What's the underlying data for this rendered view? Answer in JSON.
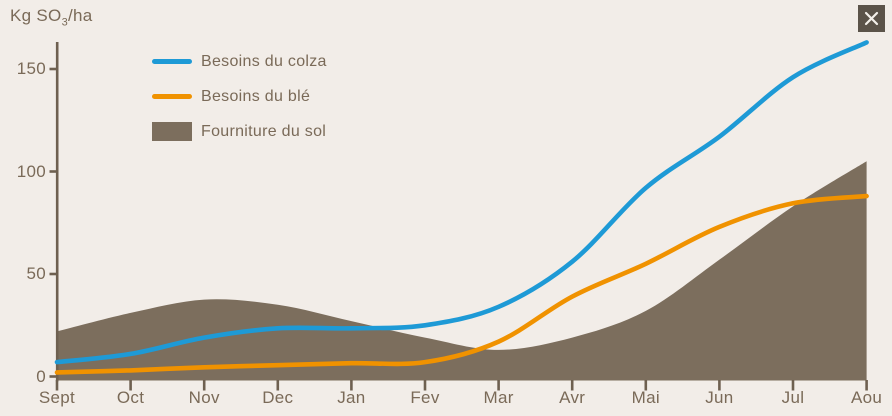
{
  "panel": {
    "background": "#f2ede8"
  },
  "axis": {
    "y_title_prefix": "Kg SO",
    "y_title_sub": "3",
    "y_title_suffix": "/ha"
  },
  "colors": {
    "text": "#7a6a58",
    "axis": "#6e6050",
    "close_background": "#5b5349",
    "close_x": "#f4f0ea",
    "colza_blue": "#1e9ad6",
    "ble_orange": "#f09200",
    "sol_brown": "#7c6e5d"
  },
  "chart_data": {
    "type": "area",
    "categories": [
      "Sept",
      "Oct",
      "Nov",
      "Dec",
      "Jan",
      "Fev",
      "Mar",
      "Avr",
      "Mai",
      "Jun",
      "Jul",
      "Aou"
    ],
    "series": [
      {
        "name": "Besoins du colza",
        "type": "line",
        "color": "#1e9ad6",
        "values": [
          7,
          11,
          19,
          23.5,
          23.5,
          25,
          34,
          56,
          92,
          117,
          146,
          163
        ]
      },
      {
        "name": "Besoins du blé",
        "type": "line",
        "color": "#f09200",
        "values": [
          2,
          3,
          4.5,
          5.5,
          6.5,
          7,
          17,
          39,
          55,
          73,
          84.5,
          88
        ]
      },
      {
        "name": "Fourniture du sol",
        "type": "area",
        "color": "#7c6e5d",
        "values": [
          22,
          31,
          37.5,
          35,
          27,
          19,
          13,
          19,
          32,
          57,
          83,
          105
        ]
      }
    ],
    "title": "",
    "xlabel": "",
    "ylabel": "Kg SO3/ha",
    "yticks": [
      0,
      50,
      100,
      150
    ],
    "ylim": [
      0,
      170
    ],
    "grid": false,
    "legend_position": "top-left"
  }
}
